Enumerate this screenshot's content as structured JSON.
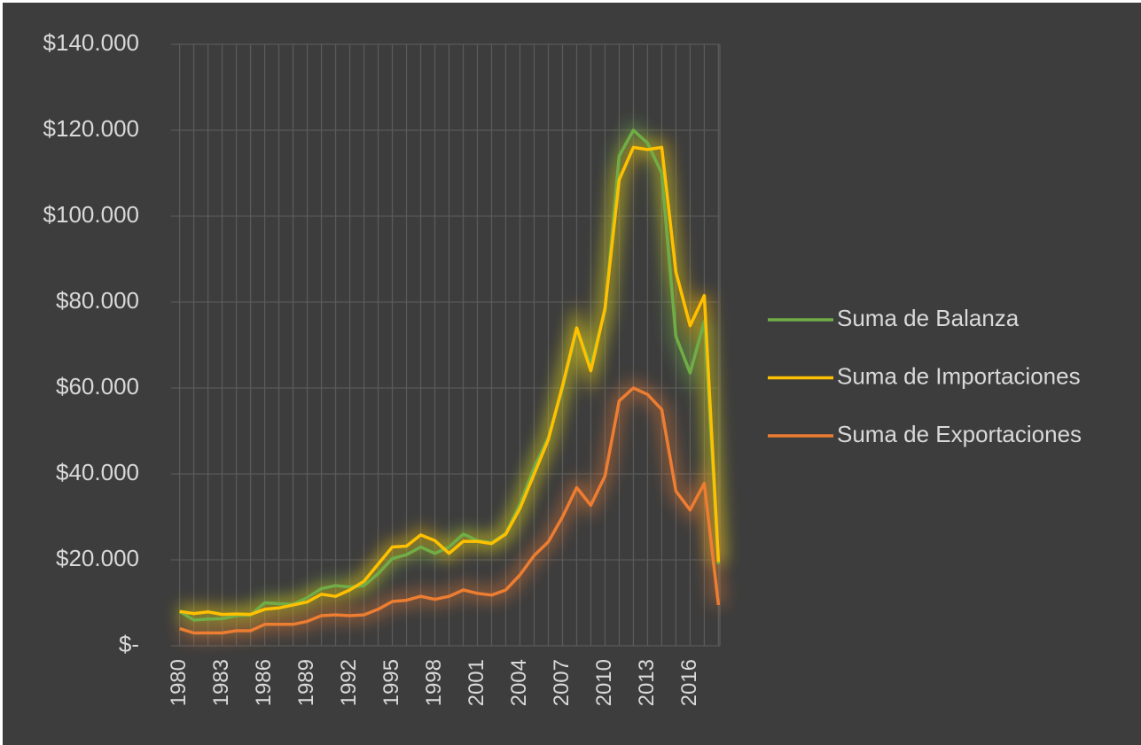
{
  "chart_data": {
    "type": "line",
    "x": [
      1980,
      1981,
      1982,
      1983,
      1984,
      1985,
      1986,
      1987,
      1988,
      1989,
      1990,
      1991,
      1992,
      1993,
      1994,
      1995,
      1996,
      1997,
      1998,
      1999,
      2000,
      2001,
      2002,
      2003,
      2004,
      2005,
      2006,
      2007,
      2008,
      2009,
      2010,
      2011,
      2012,
      2013,
      2014,
      2015,
      2016,
      2017,
      2018
    ],
    "xlim": [
      1979.4,
      2018.1
    ],
    "xticks": [
      1980,
      1983,
      1986,
      1989,
      1992,
      1995,
      1998,
      2001,
      2004,
      2007,
      2010,
      2013,
      2016
    ],
    "ylim": [
      0,
      140000
    ],
    "yticks": [
      {
        "value": 0,
        "label": "$-"
      },
      {
        "value": 20000,
        "label": "$20.000"
      },
      {
        "value": 40000,
        "label": "$40.000"
      },
      {
        "value": 60000,
        "label": "$60.000"
      },
      {
        "value": 80000,
        "label": "$80.000"
      },
      {
        "value": 100000,
        "label": "$100.000"
      },
      {
        "value": 120000,
        "label": "$120.000"
      },
      {
        "value": 140000,
        "label": "$140.000"
      }
    ],
    "grid": true,
    "legend": "right",
    "series": [
      {
        "name": "Suma de Balanza",
        "color": "#70ad47",
        "values": [
          8000,
          6000,
          6200,
          6300,
          7000,
          7200,
          10000,
          9800,
          9700,
          11200,
          13300,
          14000,
          13700,
          14000,
          16800,
          20300,
          21200,
          23000,
          21500,
          23000,
          26000,
          24500,
          24000,
          26200,
          33000,
          41500,
          48500,
          60000,
          73500,
          65500,
          78000,
          114000,
          120000,
          117000,
          110000,
          72000,
          63500,
          75500,
          19000
        ]
      },
      {
        "name": "Suma de Importaciones",
        "color": "#ffc000",
        "values": [
          8000,
          7500,
          7900,
          7300,
          7400,
          7300,
          8500,
          8800,
          9500,
          10200,
          12000,
          11500,
          13000,
          15000,
          19000,
          23000,
          23200,
          25800,
          24500,
          21500,
          24300,
          24300,
          23800,
          26000,
          32000,
          40000,
          48000,
          60500,
          74000,
          64000,
          78500,
          108500,
          116000,
          115500,
          116000,
          87000,
          74500,
          81500,
          19500
        ]
      },
      {
        "name": "Suma de Exportaciones",
        "color": "#ed7d31",
        "values": [
          4000,
          3000,
          3000,
          3000,
          3500,
          3500,
          5000,
          5000,
          5000,
          5700,
          7000,
          7200,
          7000,
          7200,
          8500,
          10300,
          10600,
          11500,
          10800,
          11500,
          13000,
          12200,
          11800,
          13000,
          16500,
          21000,
          24200,
          30000,
          36800,
          32700,
          39500,
          57000,
          60000,
          58500,
          55000,
          36000,
          31600,
          37800,
          9500
        ]
      }
    ]
  }
}
